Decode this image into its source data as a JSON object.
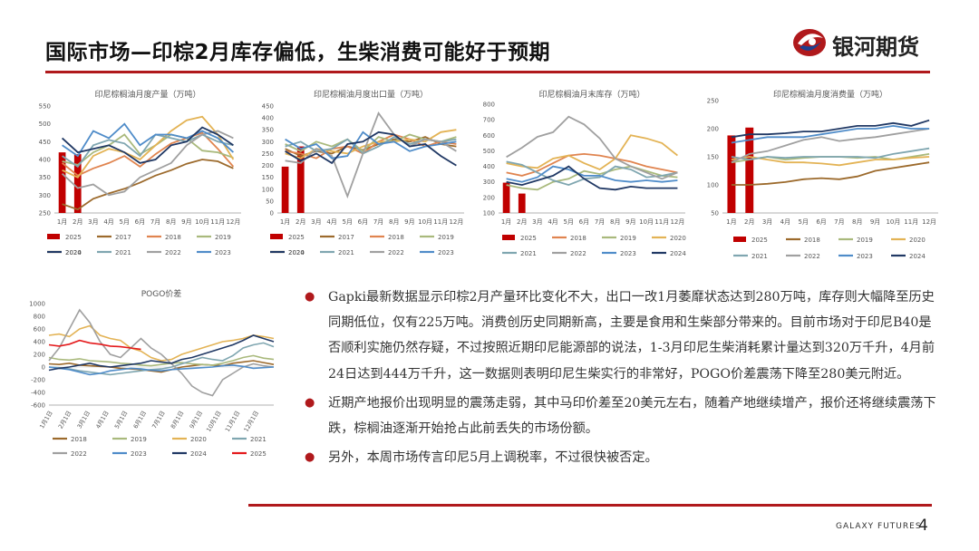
{
  "header": {
    "title": "国际市场—印棕2月库存偏低，生柴消费可能好于预期",
    "brand": "银河期货",
    "brand_red": "#b0191c",
    "brand_blue": "#1d3f8f"
  },
  "footer": {
    "company": "GALAXY FUTURES",
    "page": "4"
  },
  "bullets": [
    "Gapki最新数据显示印棕2月产量环比变化不大，出口一改1月萎靡状态达到280万吨，库存则大幅降至历史同期低位，仅有225万吨。消费创历史同期新高，主要是食用和生柴部分带来的。目前市场对于印尼B40是否顺利实施仍然存疑，不过按照近期印尼能源部的说法，1-3月印尼生柴消耗累计量达到320万千升，4月前24日达到444万千升，这一数据则表明印尼生柴实行的非常好，POGO价差震荡下降至280美元附近。",
    "近期产地报价出现明显的震荡走弱，其中马印价差至20美元左右，随着产地继续增产，报价还将继续震荡下跌，棕榈油逐渐开始抢占此前丢失的市场份额。",
    "另外，本周市场传言印尼5月上调税率，不过很快被否定。"
  ],
  "chart_data": [
    {
      "type": "line",
      "title": "印尼棕榈油月度产量（万吨）",
      "categories": [
        "1月",
        "2月",
        "3月",
        "4月",
        "5月",
        "6月",
        "7月",
        "8月",
        "9月",
        "10月",
        "11月",
        "12月"
      ],
      "ylim": [
        250,
        550
      ],
      "yticks": [
        250,
        300,
        350,
        400,
        450,
        500,
        550
      ],
      "bar_series": {
        "name": "2025",
        "color": "#c00000",
        "values": [
          420,
          415
        ]
      },
      "series": [
        {
          "name": "2017",
          "color": "#9c6a2c",
          "values": [
            275,
            260,
            290,
            305,
            318,
            335,
            355,
            370,
            388,
            400,
            395,
            375
          ]
        },
        {
          "name": "2018",
          "color": "#e0844f",
          "values": [
            390,
            355,
            375,
            390,
            410,
            380,
            415,
            445,
            460,
            475,
            430,
            380
          ]
        },
        {
          "name": "2019",
          "color": "#a9b97c",
          "values": [
            395,
            385,
            420,
            440,
            470,
            415,
            440,
            470,
            460,
            425,
            420,
            405
          ]
        },
        {
          "name": "2020",
          "color": "#e3b355",
          "values": [
            370,
            350,
            410,
            430,
            420,
            400,
            440,
            480,
            510,
            520,
            470,
            400
          ]
        },
        {
          "name": "2021",
          "color": "#7fa6b0",
          "values": [
            410,
            380,
            440,
            455,
            445,
            410,
            470,
            460,
            450,
            470,
            450,
            440
          ]
        },
        {
          "name": "2022",
          "color": "#a0a0a0",
          "values": [
            360,
            320,
            330,
            300,
            310,
            350,
            370,
            390,
            440,
            470,
            480,
            460
          ]
        },
        {
          "name": "2023",
          "color": "#4f8cc9",
          "values": [
            440,
            410,
            480,
            460,
            500,
            440,
            470,
            470,
            460,
            480,
            460,
            420
          ]
        },
        {
          "name": "2024",
          "color": "#203864",
          "values": [
            460,
            420,
            430,
            440,
            420,
            390,
            400,
            440,
            450,
            490,
            470,
            440
          ]
        }
      ]
    },
    {
      "type": "line",
      "title": "印尼棕榈油月度出口量（万吨）",
      "categories": [
        "1月",
        "2月",
        "3月",
        "4月",
        "5月",
        "6月",
        "7月",
        "8月",
        "9月",
        "10月",
        "11月",
        "12月"
      ],
      "ylim": [
        0,
        450
      ],
      "yticks": [
        0,
        50,
        100,
        150,
        200,
        250,
        300,
        350,
        400,
        450
      ],
      "bar_series": {
        "name": "2025",
        "color": "#c00000",
        "values": [
          195,
          280
        ]
      },
      "series": [
        {
          "name": "2017",
          "color": "#9c6a2c",
          "values": [
            270,
            240,
            260,
            250,
            280,
            265,
            290,
            310,
            300,
            320,
            290,
            280
          ]
        },
        {
          "name": "2018",
          "color": "#e0844f",
          "values": [
            260,
            250,
            230,
            270,
            280,
            250,
            300,
            330,
            310,
            280,
            300,
            290
          ]
        },
        {
          "name": "2019",
          "color": "#a9b97c",
          "values": [
            290,
            260,
            300,
            280,
            310,
            260,
            320,
            300,
            330,
            310,
            300,
            320
          ]
        },
        {
          "name": "2020",
          "color": "#e3b355",
          "values": [
            250,
            230,
            270,
            260,
            250,
            280,
            300,
            300,
            310,
            300,
            340,
            350
          ]
        },
        {
          "name": "2021",
          "color": "#7fa6b0",
          "values": [
            280,
            300,
            260,
            270,
            310,
            250,
            280,
            320,
            290,
            310,
            300,
            310
          ]
        },
        {
          "name": "2022",
          "color": "#a0a0a0",
          "values": [
            220,
            210,
            270,
            240,
            70,
            250,
            420,
            330,
            280,
            310,
            300,
            260
          ]
        },
        {
          "name": "2023",
          "color": "#4f8cc9",
          "values": [
            310,
            270,
            290,
            230,
            240,
            340,
            290,
            300,
            260,
            280,
            290,
            300
          ]
        },
        {
          "name": "2024",
          "color": "#203864",
          "values": [
            260,
            220,
            250,
            210,
            290,
            300,
            340,
            330,
            280,
            290,
            240,
            200
          ]
        }
      ]
    },
    {
      "type": "line",
      "title": "印尼棕榈油月末库存（万吨）",
      "categories": [
        "1月",
        "2月",
        "3月",
        "4月",
        "5月",
        "6月",
        "7月",
        "8月",
        "9月",
        "10月",
        "11月",
        "12月"
      ],
      "ylim": [
        100,
        800
      ],
      "yticks": [
        100,
        200,
        300,
        400,
        500,
        600,
        700,
        800
      ],
      "bar_series": {
        "name": "2025",
        "color": "#c00000",
        "values": [
          295,
          225
        ]
      },
      "series": [
        {
          "name": "2018",
          "color": "#e0844f",
          "values": [
            360,
            340,
            370,
            420,
            470,
            480,
            470,
            450,
            430,
            400,
            380,
            360
          ]
        },
        {
          "name": "2019",
          "color": "#a9b97c",
          "values": [
            280,
            260,
            250,
            300,
            320,
            370,
            350,
            380,
            400,
            370,
            340,
            330
          ]
        },
        {
          "name": "2020",
          "color": "#e3b355",
          "values": [
            420,
            400,
            390,
            450,
            470,
            420,
            380,
            450,
            600,
            580,
            550,
            470
          ]
        },
        {
          "name": "2021",
          "color": "#7fa6b0",
          "values": [
            430,
            410,
            360,
            310,
            280,
            320,
            330,
            400,
            380,
            330,
            340,
            360
          ]
        },
        {
          "name": "2022",
          "color": "#a0a0a0",
          "values": [
            460,
            520,
            590,
            620,
            720,
            670,
            580,
            450,
            400,
            360,
            320,
            360
          ]
        },
        {
          "name": "2023",
          "color": "#4f8cc9",
          "values": [
            320,
            300,
            330,
            400,
            380,
            340,
            340,
            310,
            300,
            310,
            300,
            310
          ]
        },
        {
          "name": "2024",
          "color": "#203864",
          "values": [
            300,
            280,
            310,
            340,
            400,
            320,
            260,
            250,
            270,
            260,
            260,
            260
          ]
        }
      ]
    },
    {
      "type": "line",
      "title": "印尼棕榈油月度消费量（万吨）",
      "categories": [
        "1月",
        "2月",
        "3月",
        "4月",
        "5月",
        "6月",
        "7月",
        "8月",
        "9月",
        "10月",
        "11月",
        "12月"
      ],
      "ylim": [
        50,
        250
      ],
      "yticks": [
        50,
        100,
        150,
        200,
        250
      ],
      "bar_series": {
        "name": "2025",
        "color": "#c00000",
        "values": [
          188,
          202
        ]
      },
      "series": [
        {
          "name": "2018",
          "color": "#9c6a2c",
          "values": [
            100,
            100,
            102,
            105,
            110,
            112,
            110,
            115,
            125,
            130,
            135,
            140
          ]
        },
        {
          "name": "2019",
          "color": "#a9b97c",
          "values": [
            140,
            145,
            150,
            145,
            148,
            150,
            150,
            148,
            150,
            145,
            150,
            155
          ]
        },
        {
          "name": "2020",
          "color": "#e3b355",
          "values": [
            145,
            150,
            145,
            140,
            140,
            138,
            135,
            140,
            145,
            145,
            148,
            150
          ]
        },
        {
          "name": "2021",
          "color": "#7fa6b0",
          "values": [
            150,
            145,
            150,
            148,
            150,
            150,
            150,
            150,
            148,
            155,
            160,
            165
          ]
        },
        {
          "name": "2022",
          "color": "#a0a0a0",
          "values": [
            140,
            155,
            160,
            170,
            180,
            185,
            178,
            182,
            185,
            190,
            195,
            200
          ]
        },
        {
          "name": "2023",
          "color": "#4f8cc9",
          "values": [
            175,
            180,
            185,
            185,
            185,
            190,
            195,
            200,
            200,
            205,
            200,
            200
          ]
        },
        {
          "name": "2024",
          "color": "#203864",
          "values": [
            185,
            190,
            190,
            192,
            195,
            195,
            200,
            205,
            205,
            210,
            205,
            215
          ]
        }
      ]
    },
    {
      "type": "line",
      "title": "POGO价差",
      "x_ticks": [
        "1月1日",
        "2月1日",
        "3月1日",
        "4月1日",
        "5月1日",
        "6月1日",
        "7月1日",
        "8月1日",
        "9月1日",
        "10月1日",
        "11月1日",
        "12月1日"
      ],
      "ylim": [
        -600,
        1000
      ],
      "yticks": [
        -600,
        -400,
        -200,
        0,
        200,
        400,
        600,
        800,
        1000
      ],
      "series": [
        {
          "name": "2018",
          "color": "#9c6a2c",
          "values": [
            50,
            40,
            60,
            30,
            20,
            10,
            0,
            -20,
            -30,
            -40,
            -60,
            -80,
            -40,
            0,
            20,
            40,
            30,
            20,
            60,
            80,
            100,
            70,
            40
          ]
        },
        {
          "name": "2019",
          "color": "#a9b97c",
          "values": [
            150,
            120,
            110,
            130,
            100,
            90,
            80,
            60,
            50,
            30,
            20,
            40,
            60,
            70,
            50,
            40,
            30,
            60,
            100,
            150,
            180,
            140,
            120
          ]
        },
        {
          "name": "2020",
          "color": "#e3b355",
          "values": [
            500,
            520,
            480,
            600,
            650,
            500,
            450,
            420,
            300,
            250,
            150,
            100,
            120,
            200,
            250,
            300,
            350,
            400,
            420,
            450,
            500,
            480,
            450
          ]
        },
        {
          "name": "2021",
          "color": "#7fa6b0",
          "values": [
            0,
            -10,
            -30,
            -60,
            -80,
            -100,
            -120,
            -100,
            -80,
            -60,
            -40,
            -30,
            0,
            50,
            100,
            150,
            120,
            100,
            180,
            300,
            350,
            380,
            320
          ]
        },
        {
          "name": "2022",
          "color": "#a0a0a0",
          "values": [
            100,
            300,
            600,
            900,
            700,
            400,
            200,
            150,
            300,
            450,
            300,
            200,
            50,
            -100,
            -300,
            -400,
            -450,
            -200,
            -100,
            0,
            50,
            20,
            0
          ]
        },
        {
          "name": "2023",
          "color": "#4f8cc9",
          "values": [
            0,
            -20,
            -40,
            -80,
            -120,
            -100,
            -60,
            -40,
            -20,
            -30,
            -50,
            -60,
            -40,
            -30,
            -20,
            -10,
            0,
            20,
            30,
            10,
            -20,
            -10,
            0
          ]
        },
        {
          "name": "2024",
          "color": "#203864",
          "values": [
            -50,
            -20,
            0,
            30,
            60,
            20,
            0,
            20,
            40,
            60,
            100,
            80,
            60,
            120,
            150,
            200,
            250,
            300,
            350,
            420,
            500,
            450,
            400
          ]
        },
        {
          "name": "2025",
          "color": "#e41a1c",
          "values": [
            350,
            330,
            360,
            420,
            380,
            360,
            330,
            320,
            300,
            280
          ]
        }
      ]
    }
  ]
}
